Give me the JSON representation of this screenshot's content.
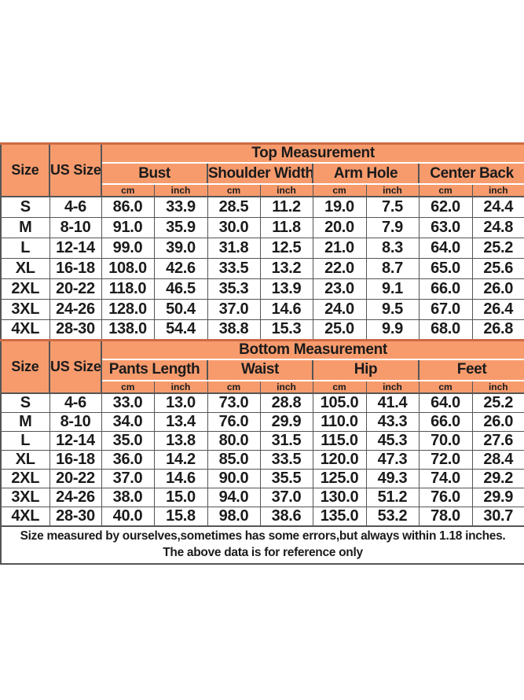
{
  "chart_data": {
    "type": "table",
    "column_headers": {
      "size": "Size",
      "us_size": "US Size",
      "unit_cm": "cm",
      "unit_inch": "inch"
    },
    "sections": [
      {
        "title": "Top Measurement",
        "groups": [
          "Bust",
          "Shoulder Width",
          "Arm Hole",
          "Center Back"
        ],
        "rows": [
          {
            "size": "S",
            "us_size": "4-6",
            "values": [
              "86.0",
              "33.9",
              "28.5",
              "11.2",
              "19.0",
              "7.5",
              "62.0",
              "24.4"
            ]
          },
          {
            "size": "M",
            "us_size": "8-10",
            "values": [
              "91.0",
              "35.9",
              "30.0",
              "11.8",
              "20.0",
              "7.9",
              "63.0",
              "24.8"
            ]
          },
          {
            "size": "L",
            "us_size": "12-14",
            "values": [
              "99.0",
              "39.0",
              "31.8",
              "12.5",
              "21.0",
              "8.3",
              "64.0",
              "25.2"
            ]
          },
          {
            "size": "XL",
            "us_size": "16-18",
            "values": [
              "108.0",
              "42.6",
              "33.5",
              "13.2",
              "22.0",
              "8.7",
              "65.0",
              "25.6"
            ]
          },
          {
            "size": "2XL",
            "us_size": "20-22",
            "values": [
              "118.0",
              "46.5",
              "35.3",
              "13.9",
              "23.0",
              "9.1",
              "66.0",
              "26.0"
            ]
          },
          {
            "size": "3XL",
            "us_size": "24-26",
            "values": [
              "128.0",
              "50.4",
              "37.0",
              "14.6",
              "24.0",
              "9.5",
              "67.0",
              "26.4"
            ]
          },
          {
            "size": "4XL",
            "us_size": "28-30",
            "values": [
              "138.0",
              "54.4",
              "38.8",
              "15.3",
              "25.0",
              "9.9",
              "68.0",
              "26.8"
            ]
          }
        ]
      },
      {
        "title": "Bottom Measurement",
        "groups": [
          "Pants Length",
          "Waist",
          "Hip",
          "Feet"
        ],
        "rows": [
          {
            "size": "S",
            "us_size": "4-6",
            "values": [
              "33.0",
              "13.0",
              "73.0",
              "28.8",
              "105.0",
              "41.4",
              "64.0",
              "25.2"
            ]
          },
          {
            "size": "M",
            "us_size": "8-10",
            "values": [
              "34.0",
              "13.4",
              "76.0",
              "29.9",
              "110.0",
              "43.3",
              "66.0",
              "26.0"
            ]
          },
          {
            "size": "L",
            "us_size": "12-14",
            "values": [
              "35.0",
              "13.8",
              "80.0",
              "31.5",
              "115.0",
              "45.3",
              "70.0",
              "27.6"
            ]
          },
          {
            "size": "XL",
            "us_size": "16-18",
            "values": [
              "36.0",
              "14.2",
              "85.0",
              "33.5",
              "120.0",
              "47.3",
              "72.0",
              "28.4"
            ]
          },
          {
            "size": "2XL",
            "us_size": "20-22",
            "values": [
              "37.0",
              "14.6",
              "90.0",
              "35.5",
              "125.0",
              "49.3",
              "74.0",
              "29.2"
            ]
          },
          {
            "size": "3XL",
            "us_size": "24-26",
            "values": [
              "38.0",
              "15.0",
              "94.0",
              "37.0",
              "130.0",
              "51.2",
              "76.0",
              "29.9"
            ]
          },
          {
            "size": "4XL",
            "us_size": "28-30",
            "values": [
              "40.0",
              "15.8",
              "98.0",
              "38.6",
              "135.0",
              "53.2",
              "78.0",
              "30.7"
            ]
          }
        ]
      }
    ],
    "footnote": {
      "line1": "Size measured by ourselves,sometimes has some errors,but always within 1.18 inches.",
      "line2": "The above data is for reference only"
    },
    "layout_hints": {
      "legend": "none",
      "grid": "on"
    },
    "colors": {
      "header_fill": "#F79B6D",
      "header_top_border": "#CE6A45",
      "grid": "#555555",
      "header_inner_divider": "#FFFFFF",
      "text": "#1B1B1B",
      "background": "#FFFFFF"
    }
  }
}
